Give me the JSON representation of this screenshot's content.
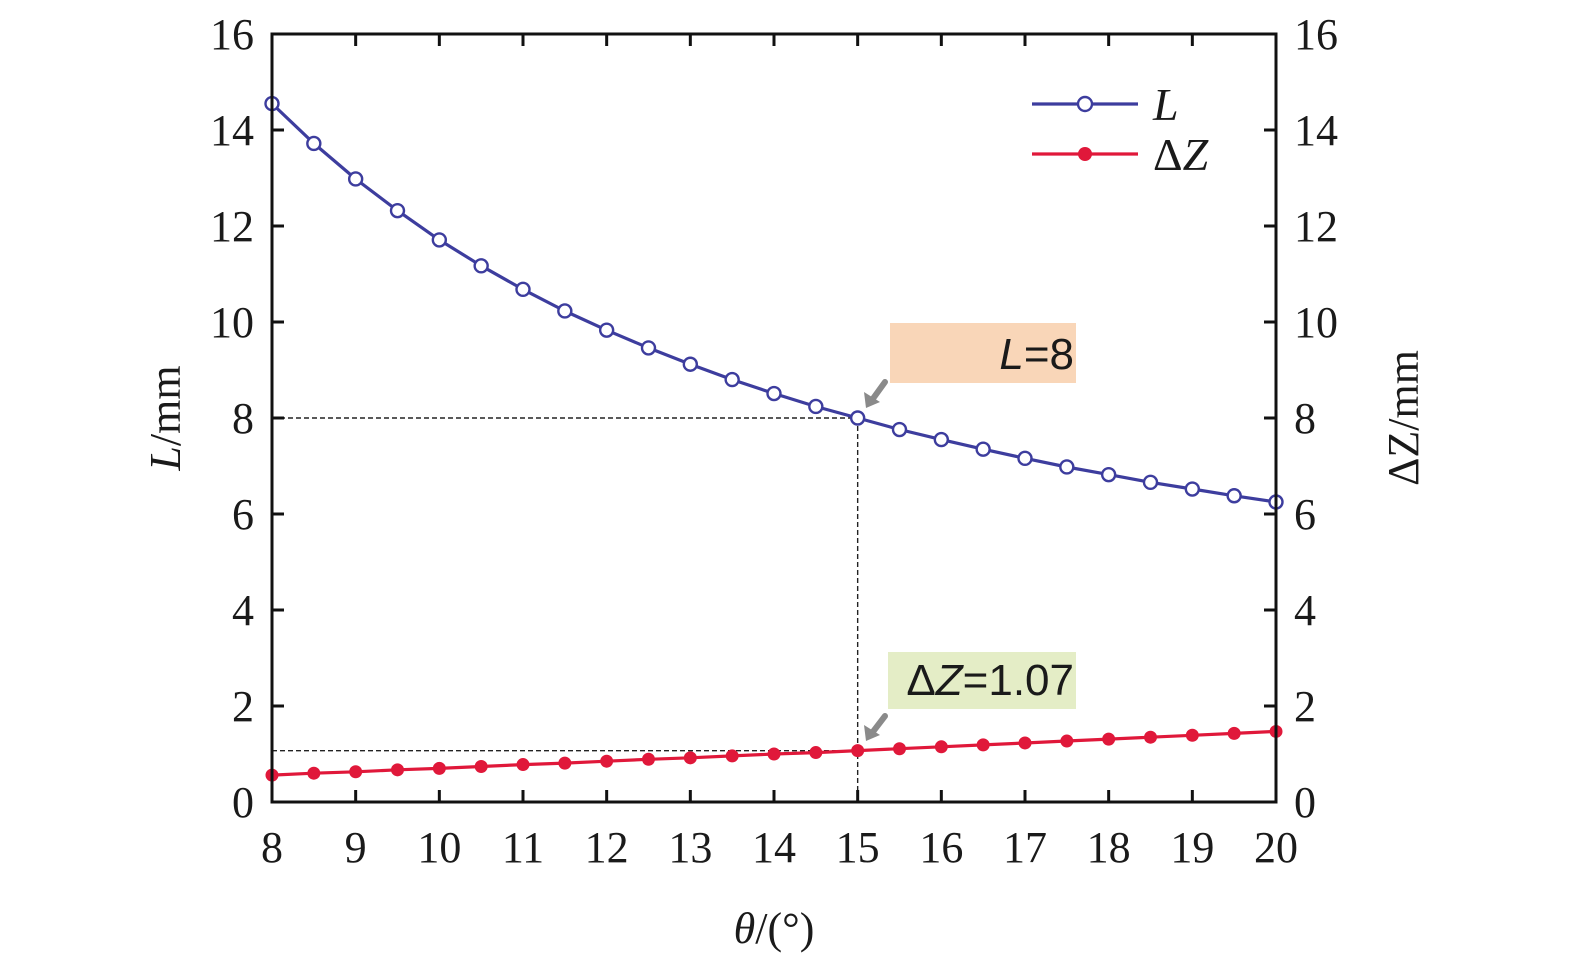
{
  "chart_data": {
    "type": "line",
    "x": [
      8,
      8.5,
      9,
      9.5,
      10,
      10.5,
      11,
      11.5,
      12,
      12.5,
      13,
      13.5,
      14,
      14.5,
      15,
      15.5,
      16,
      16.5,
      17,
      17.5,
      18,
      18.5,
      19,
      19.5,
      20
    ],
    "series": [
      {
        "name": "L",
        "axis": "left",
        "color": "#3d3d9e",
        "marker": "open-circle",
        "values": [
          14.55,
          13.72,
          12.98,
          12.32,
          11.71,
          11.17,
          10.68,
          10.23,
          9.83,
          9.46,
          9.12,
          8.8,
          8.51,
          8.24,
          8.0,
          7.76,
          7.55,
          7.35,
          7.16,
          6.98,
          6.82,
          6.66,
          6.52,
          6.38,
          6.25
        ]
      },
      {
        "name": "ΔZ",
        "axis": "right",
        "color": "#e0183a",
        "marker": "filled-circle",
        "values": [
          0.56,
          0.6,
          0.63,
          0.67,
          0.7,
          0.74,
          0.78,
          0.81,
          0.85,
          0.89,
          0.92,
          0.96,
          1.0,
          1.03,
          1.07,
          1.11,
          1.15,
          1.19,
          1.23,
          1.27,
          1.31,
          1.35,
          1.39,
          1.43,
          1.47
        ]
      }
    ],
    "xlabel": {
      "italic": "θ",
      "rest": "/(°)"
    },
    "ylabel_left": {
      "italic": "L",
      "rest": "/mm"
    },
    "ylabel_right": "ΔZ/mm",
    "xlim": [
      8,
      20
    ],
    "ylim_left": [
      0,
      16
    ],
    "ylim_right": [
      0,
      16
    ],
    "xticks": [
      8,
      9,
      10,
      11,
      12,
      13,
      14,
      15,
      16,
      17,
      18,
      19,
      20
    ],
    "yticks": [
      0,
      2,
      4,
      6,
      8,
      10,
      12,
      14,
      16
    ],
    "grid": false,
    "legend_position": "top-right",
    "legend": [
      {
        "label": "L",
        "italic": true
      },
      {
        "prefix": "Δ",
        "label": "Z",
        "italic": true
      }
    ],
    "annotations": [
      {
        "prefix": "",
        "italic": "L",
        "rest": "=8",
        "x": 15,
        "y": 8,
        "bg": "#f9d6b8",
        "guide_y": 8
      },
      {
        "prefix": "Δ",
        "italic": "Z",
        "rest": "=1.07",
        "x": 15,
        "y": 1.07,
        "bg": "#e4edc6",
        "guide_y": 1.07
      }
    ]
  }
}
